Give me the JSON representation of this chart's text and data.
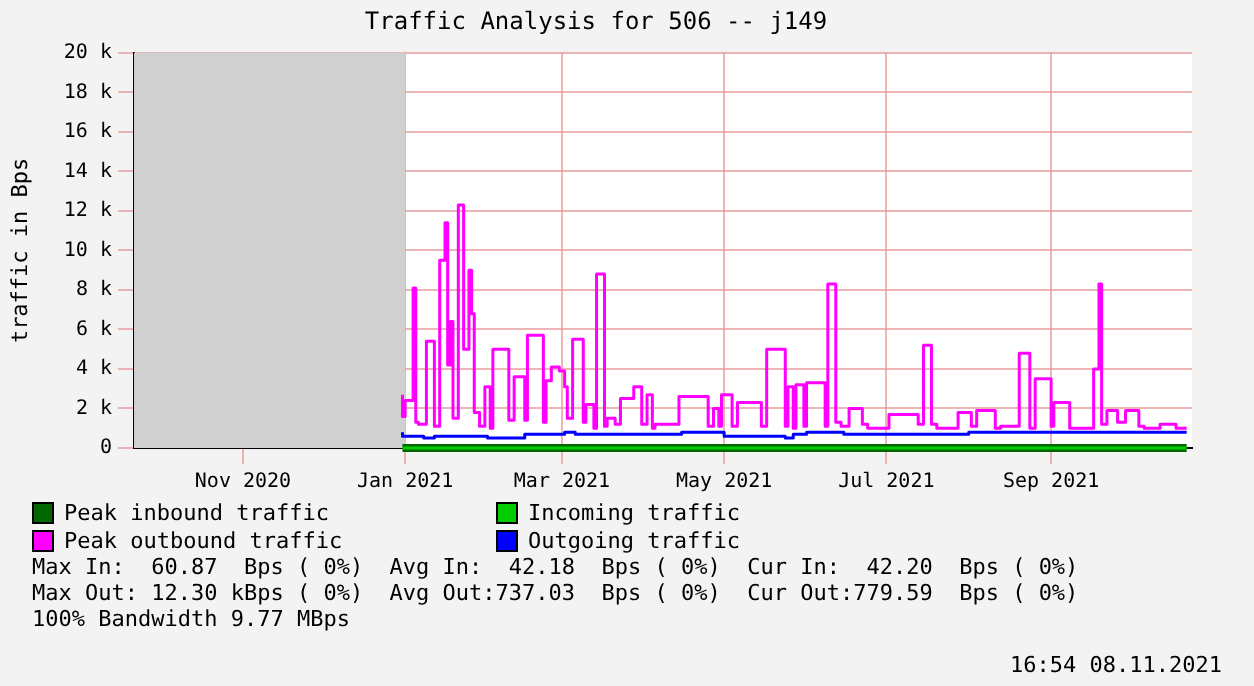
{
  "chart_data": {
    "type": "step",
    "title": "Traffic Analysis for 506 -- j149",
    "ylabel": "traffic in Bps",
    "xlim": [
      "2020-09-21",
      "2021-10-24"
    ],
    "xticks": [
      {
        "value": "2020-11-01",
        "label": "Nov 2020"
      },
      {
        "value": "2021-01-01",
        "label": "Jan 2021"
      },
      {
        "value": "2021-03-01",
        "label": "Mar 2021"
      },
      {
        "value": "2021-05-01",
        "label": "May 2021"
      },
      {
        "value": "2021-07-01",
        "label": "Jul 2021"
      },
      {
        "value": "2021-09-01",
        "label": "Sep 2021"
      }
    ],
    "ylim": [
      0,
      20000
    ],
    "yticks": [
      0,
      {
        "value": 2000,
        "label": "2 k"
      },
      {
        "value": 4000,
        "label": "4 k"
      },
      {
        "value": 6000,
        "label": "6 k"
      },
      {
        "value": 8000,
        "label": "8 k"
      },
      {
        "value": 10000,
        "label": "10 k"
      },
      {
        "value": 12000,
        "label": "12 k"
      },
      {
        "value": 14000,
        "label": "14 k"
      },
      {
        "value": 16000,
        "label": "16 k"
      },
      {
        "value": 18000,
        "label": "18 k"
      },
      {
        "value": 20000,
        "label": "20 k"
      }
    ],
    "grid": true,
    "legend": "bottom",
    "bands": [
      {
        "axis": "x",
        "from": "2020-09-21",
        "to": "2021-01-01",
        "color": "#d0d0d0"
      }
    ],
    "series": [
      {
        "name": "Peak inbound traffic",
        "color": "#006600",
        "x": [
          "2020-12-31",
          "2021-03-01",
          "2021-06-01",
          "2021-10-22"
        ],
        "values": [
          0,
          0,
          0,
          0
        ]
      },
      {
        "name": "Incoming traffic",
        "color": "#00cc00",
        "x": [
          "2020-12-31",
          "2021-10-22"
        ],
        "values": [
          0,
          0
        ]
      },
      {
        "name": "Peak outbound traffic",
        "color": "#ff00ff",
        "x": [
          "2020-12-31",
          "2021-01-01",
          "2021-01-04",
          "2021-01-05",
          "2021-01-06",
          "2021-01-09",
          "2021-01-12",
          "2021-01-14",
          "2021-01-16",
          "2021-01-17",
          "2021-01-18",
          "2021-01-19",
          "2021-01-21",
          "2021-01-23",
          "2021-01-25",
          "2021-01-26",
          "2021-01-27",
          "2021-01-29",
          "2021-01-31",
          "2021-02-02",
          "2021-02-03",
          "2021-02-09",
          "2021-02-11",
          "2021-02-15",
          "2021-02-16",
          "2021-02-22",
          "2021-02-23",
          "2021-02-25",
          "2021-02-28",
          "2021-03-02",
          "2021-03-03",
          "2021-03-05",
          "2021-03-09",
          "2021-03-10",
          "2021-03-13",
          "2021-03-14",
          "2021-03-17",
          "2021-03-18",
          "2021-03-21",
          "2021-03-23",
          "2021-03-28",
          "2021-03-31",
          "2021-04-02",
          "2021-04-04",
          "2021-04-05",
          "2021-04-14",
          "2021-04-25",
          "2021-04-27",
          "2021-04-29",
          "2021-04-30",
          "2021-05-04",
          "2021-05-06",
          "2021-05-15",
          "2021-05-17",
          "2021-05-24",
          "2021-05-25",
          "2021-05-27",
          "2021-05-28",
          "2021-05-31",
          "2021-06-01",
          "2021-06-08",
          "2021-06-09",
          "2021-06-12",
          "2021-06-14",
          "2021-06-17",
          "2021-06-22",
          "2021-06-24",
          "2021-07-02",
          "2021-07-13",
          "2021-07-15",
          "2021-07-18",
          "2021-07-20",
          "2021-07-28",
          "2021-08-02",
          "2021-08-04",
          "2021-08-11",
          "2021-08-13",
          "2021-08-20",
          "2021-08-24",
          "2021-08-26",
          "2021-09-01",
          "2021-09-02",
          "2021-09-08",
          "2021-09-09",
          "2021-09-17",
          "2021-09-19",
          "2021-09-20",
          "2021-09-22",
          "2021-09-26",
          "2021-09-29",
          "2021-10-04",
          "2021-10-06",
          "2021-10-12",
          "2021-10-18",
          "2021-10-22"
        ],
        "values": [
          2700,
          1600,
          2400,
          8100,
          1300,
          1200,
          5400,
          1100,
          9500,
          11400,
          4200,
          6400,
          1500,
          12300,
          5000,
          9000,
          6800,
          1800,
          1100,
          3100,
          1000,
          5000,
          1400,
          3600,
          1400,
          5700,
          1300,
          3400,
          4100,
          3900,
          3100,
          1500,
          5500,
          1300,
          2200,
          1000,
          8800,
          1100,
          1500,
          1200,
          2500,
          3100,
          1200,
          2700,
          1000,
          1200,
          2600,
          1100,
          2000,
          1100,
          2700,
          1100,
          2300,
          1100,
          5000,
          1100,
          3100,
          1000,
          3200,
          1100,
          3300,
          1100,
          8300,
          1300,
          1100,
          2000,
          1200,
          1000,
          1700,
          1200,
          5200,
          1200,
          1000,
          1800,
          1100,
          1900,
          1000,
          1100,
          4800,
          1000,
          3500,
          1100,
          2300,
          1000,
          1000,
          4000,
          8300,
          1200,
          1900,
          1300,
          1900,
          1100,
          1000,
          1200,
          1000
        ]
      },
      {
        "name": "Outgoing traffic",
        "color": "#0000ff",
        "x": [
          "2020-12-31",
          "2021-01-08",
          "2021-01-12",
          "2021-02-01",
          "2021-02-15",
          "2021-03-02",
          "2021-03-06",
          "2021-04-15",
          "2021-05-01",
          "2021-05-24",
          "2021-05-27",
          "2021-06-01",
          "2021-06-15",
          "2021-08-01",
          "2021-08-15",
          "2021-10-22"
        ],
        "values": [
          800,
          600,
          500,
          600,
          500,
          700,
          800,
          700,
          800,
          600,
          500,
          700,
          800,
          700,
          800,
          800
        ]
      }
    ],
    "annotations": [
      "Max In:  60.87  Bps ( 0%)  Avg In:  42.18  Bps ( 0%)  Cur In:  42.20  Bps ( 0%)",
      "Max Out: 12.30 kBps ( 0%)  Avg Out:737.03  Bps ( 0%)  Cur Out:779.59  Bps ( 0%)",
      "100% Bandwidth 9.77 MBps",
      "16:54 08.11.2021"
    ]
  }
}
